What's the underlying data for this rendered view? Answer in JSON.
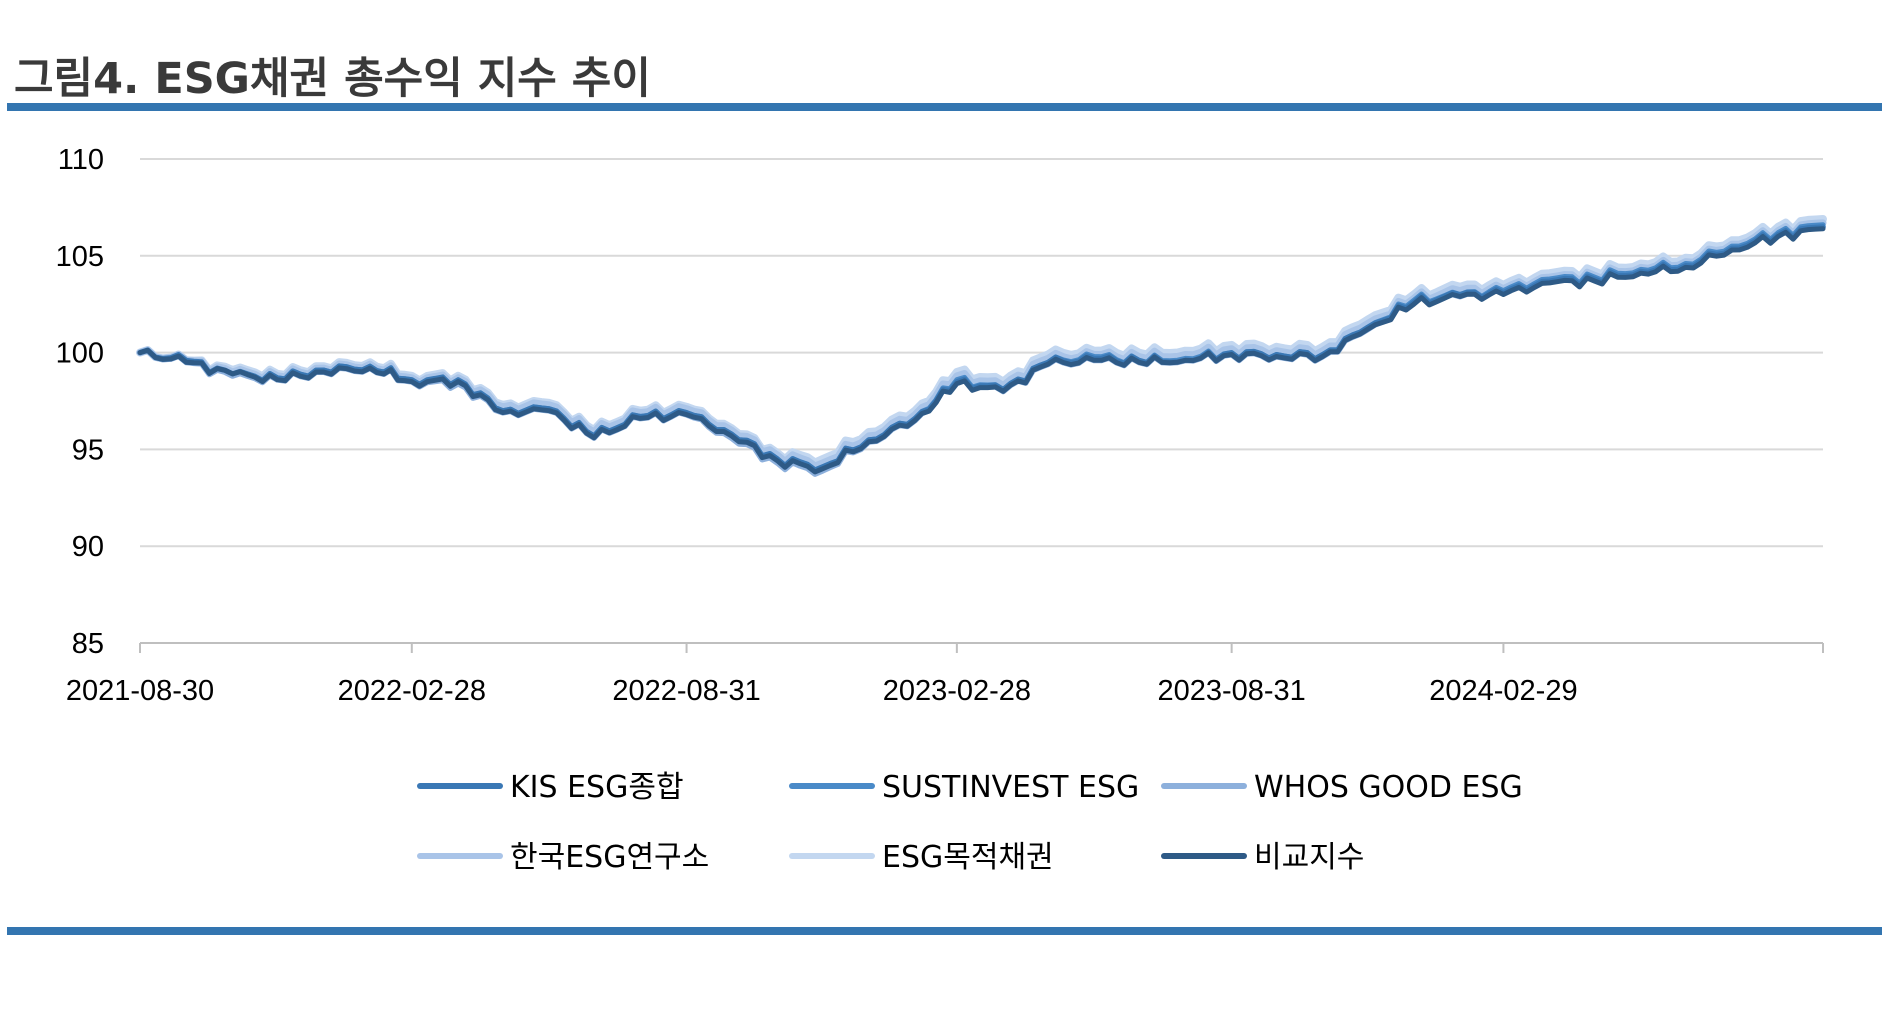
{
  "title": "그림4. ESG채권 총수익 지수 추이",
  "chart_data": {
    "type": "line",
    "title": "그림4. ESG채권 총수익 지수 추이",
    "xlabel": "",
    "ylabel": "",
    "ylim": [
      85,
      110
    ],
    "yticks": [
      85,
      90,
      95,
      100,
      105,
      110
    ],
    "grid": true,
    "legend_position": "bottom",
    "x_tick_labels": [
      "2021-08-30",
      "2022-02-28",
      "2022-08-31",
      "2023-02-28",
      "2023-08-31",
      "2024-02-29"
    ],
    "x": [
      "2021-08-30",
      "2021-09-30",
      "2021-10-31",
      "2021-11-30",
      "2021-12-31",
      "2022-01-31",
      "2022-02-28",
      "2022-03-31",
      "2022-04-30",
      "2022-05-31",
      "2022-06-30",
      "2022-07-31",
      "2022-08-31",
      "2022-09-30",
      "2022-10-31",
      "2022-11-30",
      "2022-12-31",
      "2023-01-31",
      "2023-02-28",
      "2023-03-31",
      "2023-04-30",
      "2023-05-31",
      "2023-06-30",
      "2023-07-31",
      "2023-08-31",
      "2023-09-30",
      "2023-10-31",
      "2023-11-30",
      "2023-12-31",
      "2024-01-31",
      "2024-02-29",
      "2024-03-31",
      "2024-04-30",
      "2024-05-31",
      "2024-06-30",
      "2024-07-31",
      "2024-08-31",
      "2024-09-30"
    ],
    "series": [
      {
        "name": "KIS ESG종합",
        "color": "#3a78b5",
        "values": [
          100.0,
          99.6,
          98.9,
          98.7,
          99.1,
          99.3,
          98.6,
          98.6,
          97.0,
          97.1,
          95.7,
          96.7,
          96.9,
          95.8,
          94.5,
          94.1,
          95.5,
          96.6,
          98.5,
          98.1,
          99.5,
          99.7,
          99.6,
          99.6,
          100.0,
          99.9,
          99.9,
          101.3,
          102.6,
          103.0,
          103.1,
          103.7,
          103.8,
          104.2,
          104.5,
          105.4,
          106.1,
          106.5
        ]
      },
      {
        "name": "SUSTINVEST ESG",
        "color": "#4a8ac8",
        "values": [
          100.0,
          99.5,
          98.9,
          98.7,
          99.1,
          99.3,
          98.6,
          98.5,
          97.0,
          97.1,
          95.7,
          96.7,
          96.9,
          95.8,
          94.5,
          94.1,
          95.5,
          96.6,
          98.6,
          98.1,
          99.5,
          99.8,
          99.6,
          99.7,
          100.0,
          99.9,
          99.9,
          101.3,
          102.7,
          103.0,
          103.2,
          103.8,
          103.9,
          104.3,
          104.6,
          105.5,
          106.2,
          106.6
        ]
      },
      {
        "name": "WHOS GOOD ESG",
        "color": "#8db0dc",
        "values": [
          100.0,
          99.5,
          98.8,
          98.6,
          99.0,
          99.2,
          98.5,
          98.4,
          96.9,
          97.0,
          95.6,
          96.6,
          96.8,
          95.6,
          94.3,
          93.9,
          95.4,
          96.5,
          98.5,
          98.0,
          99.4,
          99.6,
          99.5,
          99.6,
          99.9,
          99.8,
          99.8,
          101.2,
          102.6,
          102.9,
          103.1,
          103.7,
          103.8,
          104.2,
          104.5,
          105.4,
          106.1,
          106.5
        ]
      },
      {
        "name": "한국ESG연구소",
        "color": "#a9c4e8",
        "values": [
          100.0,
          99.6,
          99.0,
          98.8,
          99.2,
          99.4,
          98.7,
          98.7,
          97.2,
          97.3,
          95.9,
          96.9,
          97.1,
          96.0,
          94.7,
          94.3,
          95.7,
          96.8,
          98.8,
          98.3,
          99.7,
          99.9,
          99.8,
          99.9,
          100.2,
          100.1,
          100.1,
          101.5,
          102.8,
          103.2,
          103.3,
          103.9,
          104.0,
          104.4,
          104.7,
          105.6,
          106.3,
          106.7
        ]
      },
      {
        "name": "ESG목적채권",
        "color": "#c3d7f0",
        "values": [
          100.0,
          99.6,
          99.1,
          98.9,
          99.3,
          99.5,
          98.8,
          98.8,
          97.3,
          97.4,
          96.0,
          97.0,
          97.2,
          96.1,
          94.8,
          94.5,
          95.9,
          97.0,
          99.0,
          98.5,
          99.9,
          100.1,
          100.0,
          100.1,
          100.4,
          100.3,
          100.3,
          101.7,
          103.0,
          103.4,
          103.5,
          104.1,
          104.2,
          104.6,
          104.9,
          105.8,
          106.5,
          106.9
        ]
      },
      {
        "name": "비교지수",
        "color": "#2e5a86",
        "values": [
          100.0,
          99.5,
          98.9,
          98.6,
          99.0,
          99.2,
          98.5,
          98.5,
          96.9,
          97.0,
          95.6,
          96.6,
          96.8,
          95.7,
          94.4,
          94.0,
          95.4,
          96.5,
          98.4,
          98.0,
          99.4,
          99.6,
          99.5,
          99.6,
          99.9,
          99.8,
          99.8,
          101.2,
          102.5,
          102.9,
          103.0,
          103.6,
          103.7,
          104.1,
          104.4,
          105.3,
          106.0,
          106.4
        ]
      }
    ]
  }
}
